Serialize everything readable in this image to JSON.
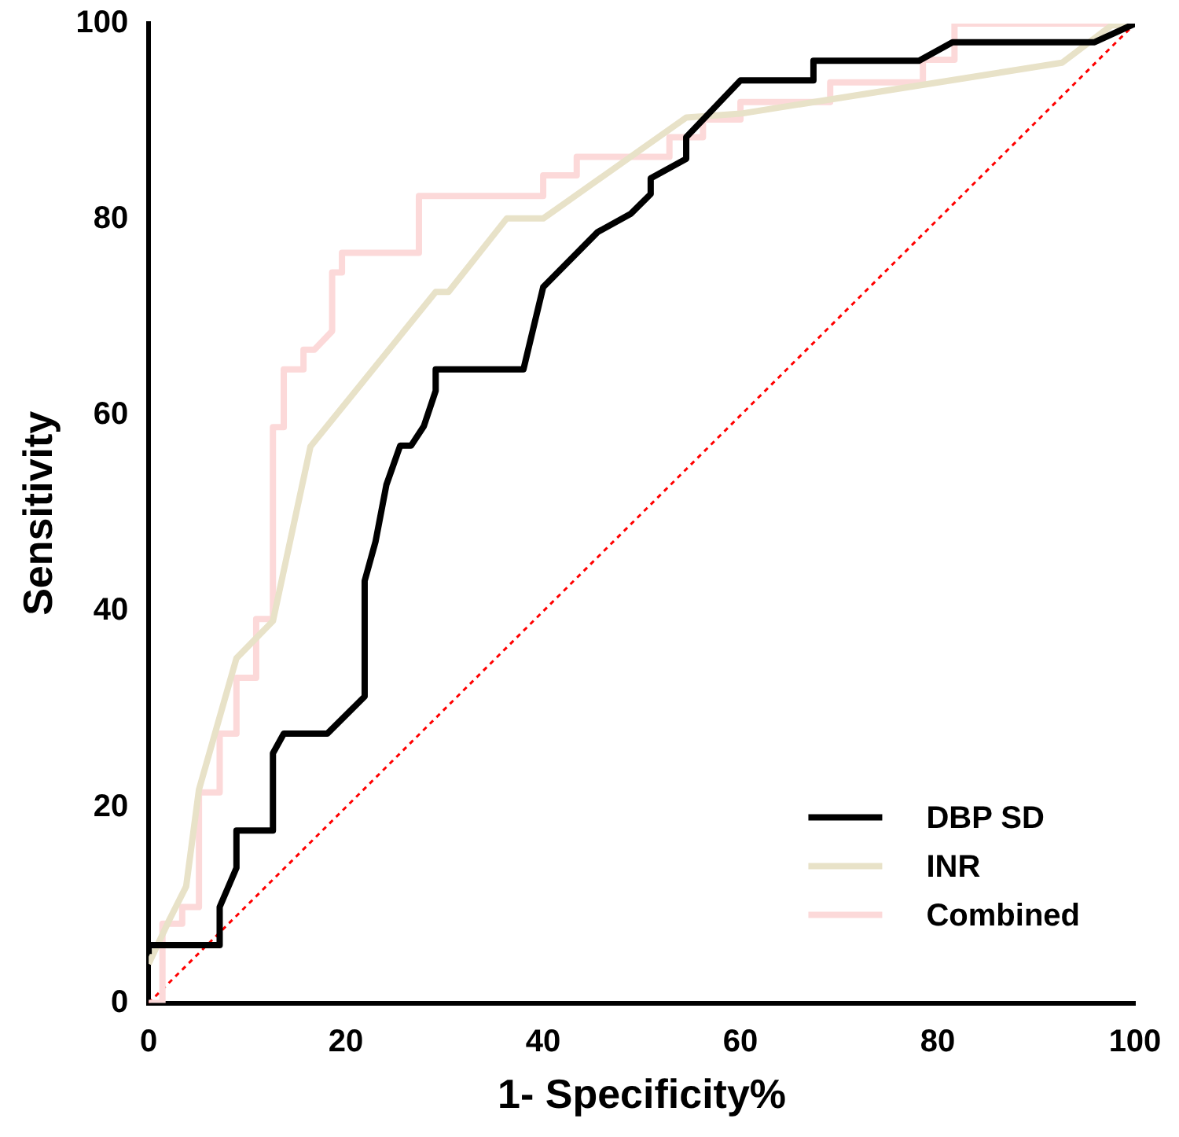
{
  "chart_data": {
    "type": "line",
    "xlabel": "1- Specificity%",
    "ylabel": "Sensitivity",
    "xlim": [
      0,
      100
    ],
    "ylim": [
      0,
      100
    ],
    "xticks": [
      0,
      20,
      40,
      60,
      80,
      100
    ],
    "yticks": [
      0,
      20,
      40,
      60,
      80,
      100
    ],
    "grid": false,
    "legend": "bottom right",
    "marker": "none",
    "series": [
      {
        "name": "DBP SD",
        "color": "#000000",
        "line_style": "solid",
        "x": [
          0,
          0,
          7.2,
          7.2,
          8.9,
          8.9,
          12.6,
          12.6,
          13.7,
          18.1,
          21.9,
          21.9,
          23,
          24.1,
          25.5,
          26.6,
          27.9,
          29.1,
          29.1,
          32.5,
          38,
          40,
          45.5,
          48.9,
          50.9,
          50.9,
          54.5,
          54.5,
          60,
          67.4,
          67.4,
          78.1,
          81.5,
          95.9,
          100
        ],
        "values": [
          5,
          5.9,
          5.9,
          9.8,
          13.8,
          17.6,
          17.6,
          25.5,
          27.5,
          27.5,
          31.3,
          43.1,
          47.1,
          52.9,
          56.9,
          56.9,
          58.9,
          62.5,
          64.7,
          64.7,
          64.7,
          73.1,
          78.7,
          80.6,
          82.6,
          84.2,
          86.2,
          88.4,
          94.2,
          94.2,
          96.2,
          96.2,
          98.1,
          98.1,
          100
        ]
      },
      {
        "name": "INR",
        "color": "#e8e2c8",
        "line_style": "solid",
        "x": [
          0,
          2.1,
          3.8,
          5.1,
          8.9,
          12.6,
          16.4,
          29.1,
          30.4,
          36.3,
          40,
          54.5,
          60,
          92.6,
          97.6,
          100
        ],
        "values": [
          4,
          8.5,
          11.9,
          21.8,
          35.2,
          39,
          56.8,
          72.6,
          72.6,
          80.1,
          80.1,
          90.4,
          90.8,
          96,
          99.8,
          100
        ]
      },
      {
        "name": "Combined",
        "color": "#fcd9d9",
        "line_style": "solid",
        "x": [
          0,
          1.4,
          1.4,
          3.4,
          3.4,
          5.1,
          5.1,
          7.2,
          7.2,
          8.9,
          8.9,
          10.9,
          10.9,
          12.6,
          12.6,
          13.7,
          13.7,
          15.7,
          15.7,
          16.8,
          18.6,
          18.6,
          19.6,
          19.6,
          27.4,
          27.4,
          40,
          40,
          43.4,
          43.4,
          52.8,
          52.8,
          56.2,
          56.2,
          60,
          60,
          69.1,
          69.1,
          78.5,
          78.5,
          81.7,
          81.7,
          100
        ],
        "values": [
          0,
          0,
          8.1,
          8.1,
          9.8,
          9.8,
          21.5,
          21.5,
          27.5,
          27.5,
          33.2,
          33.2,
          39.2,
          39.2,
          58.8,
          58.8,
          64.7,
          64.7,
          66.7,
          66.7,
          68.6,
          74.6,
          74.6,
          76.6,
          76.6,
          82.4,
          82.4,
          84.5,
          84.5,
          86.4,
          86.4,
          88.4,
          88.4,
          90.2,
          90.2,
          92,
          92,
          94,
          94,
          96.3,
          96.3,
          100,
          100
        ]
      },
      {
        "color": "#ff0000",
        "line_style": "dotted",
        "x": [
          0,
          100
        ],
        "values": [
          0,
          100
        ]
      }
    ]
  }
}
